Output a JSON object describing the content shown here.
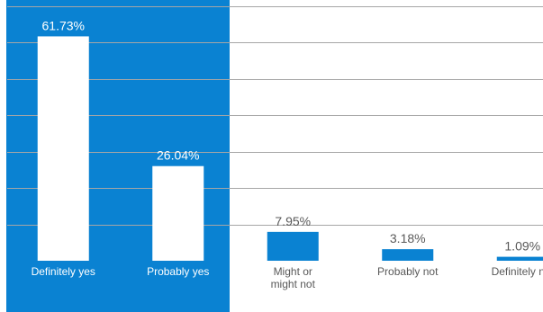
{
  "chart_data": {
    "type": "bar",
    "title": "",
    "xlabel": "",
    "ylabel": "",
    "ylim": [
      0,
      70
    ],
    "grid": true,
    "legend": "none",
    "categories": [
      [
        "Definitely yes"
      ],
      [
        "Probably yes"
      ],
      [
        "Might or",
        "might not"
      ],
      [
        "Probably not"
      ],
      [
        "Definitely not"
      ]
    ],
    "values": [
      61.73,
      26.04,
      7.95,
      3.18,
      1.09
    ],
    "value_labels": [
      "61.73%",
      "26.04%",
      "7.95%",
      "3.18%",
      "1.09%"
    ],
    "highlighted": [
      0,
      1
    ]
  },
  "colors": {
    "accent": "#0a82d2",
    "bar_highlight": "#ffffff",
    "gridline": "#a6a6a6",
    "text_on_accent": "#ffffff",
    "text_default": "#595959"
  }
}
